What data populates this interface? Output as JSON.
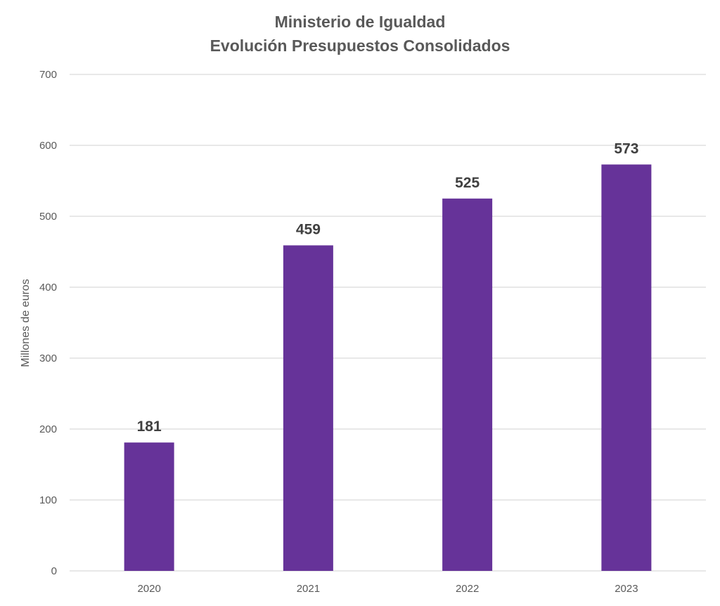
{
  "chart_data": {
    "type": "bar",
    "title": "Ministerio de Igualdad",
    "subtitle": "Evolución Presupuestos Consolidados",
    "xlabel": "",
    "ylabel": "Millones de euros",
    "categories": [
      "2020",
      "2021",
      "2022",
      "2023"
    ],
    "values": [
      181,
      459,
      525,
      573
    ],
    "data_labels": [
      "181",
      "459",
      "525",
      "573"
    ],
    "ylim": [
      0,
      700
    ],
    "yticks": [
      "0",
      "100",
      "200",
      "300",
      "400",
      "500",
      "600",
      "700"
    ],
    "ytick_values": [
      0,
      100,
      200,
      300,
      400,
      500,
      600,
      700
    ],
    "grid": true,
    "legend": "none",
    "bar_color": "#663399"
  }
}
